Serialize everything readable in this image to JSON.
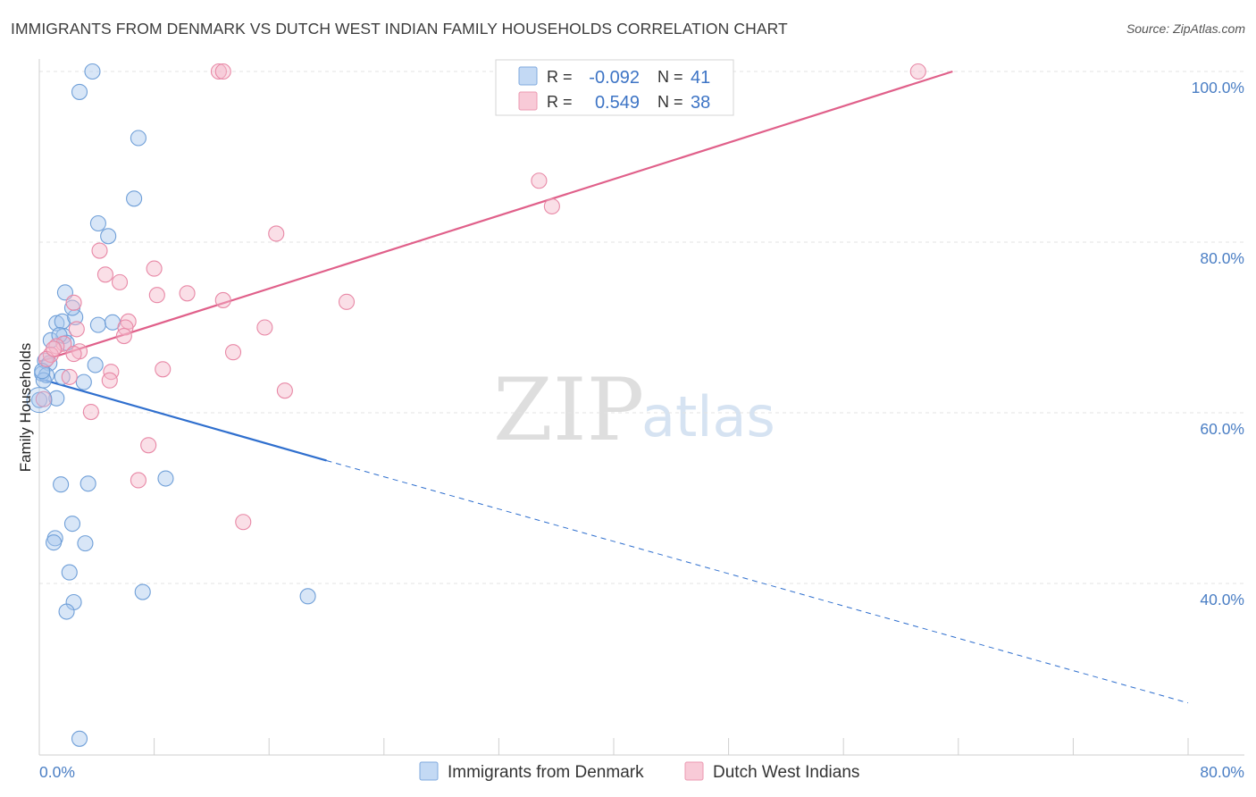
{
  "header": {
    "title": "IMMIGRANTS FROM DENMARK VS DUTCH WEST INDIAN FAMILY HOUSEHOLDS CORRELATION CHART",
    "source": "Source: ZipAtlas.com"
  },
  "watermark": {
    "part1": "ZIP",
    "part2": "atlas"
  },
  "legend_top": {
    "r_label": "R =",
    "n_label": "N =",
    "rows": [
      {
        "r": "-0.092",
        "n": "41",
        "color": "#a9c8ee"
      },
      {
        "r": "0.549",
        "n": "38",
        "color": "#f5b9ca"
      }
    ]
  },
  "chart_data": {
    "type": "scatter",
    "title": "IMMIGRANTS FROM DENMARK VS DUTCH WEST INDIAN FAMILY HOUSEHOLDS CORRELATION CHART",
    "xlabel": "",
    "ylabel": "Family Households",
    "xlim": [
      0,
      80
    ],
    "ylim": [
      20,
      102
    ],
    "x_tick_labels": [
      "0.0%",
      "80.0%"
    ],
    "y_tick_labels": [
      "100.0%",
      "80.0%",
      "60.0%",
      "40.0%"
    ],
    "y_ticks": [
      100,
      80,
      60,
      40
    ],
    "grid": true,
    "legend_position": "bottom",
    "series": [
      {
        "name": "Immigrants from Denmark",
        "color": "#a9c8ee",
        "stroke": "#6f9fd8",
        "line_color": "#2f6fce",
        "r": -0.092,
        "n": 41,
        "trend": {
          "x0": 0,
          "y0": 64.0,
          "x1": 20,
          "y1": 54.4,
          "x_dash_end": 80,
          "y_dash_end": 26.0
        },
        "points": [
          [
            3.7,
            100.0
          ],
          [
            2.8,
            97.6
          ],
          [
            6.9,
            92.2
          ],
          [
            6.6,
            85.1
          ],
          [
            4.1,
            82.2
          ],
          [
            4.8,
            80.7
          ],
          [
            1.8,
            74.1
          ],
          [
            1.2,
            70.5
          ],
          [
            1.6,
            70.7
          ],
          [
            2.5,
            71.2
          ],
          [
            2.3,
            72.3
          ],
          [
            4.1,
            70.3
          ],
          [
            5.1,
            70.6
          ],
          [
            1.7,
            69.0
          ],
          [
            1.9,
            68.2
          ],
          [
            0.8,
            68.5
          ],
          [
            0.4,
            66.1
          ],
          [
            0.7,
            65.8
          ],
          [
            3.9,
            65.6
          ],
          [
            0.2,
            64.6
          ],
          [
            0.5,
            64.4
          ],
          [
            1.6,
            64.2
          ],
          [
            0.3,
            63.8
          ],
          [
            3.1,
            63.6
          ],
          [
            0.0,
            61.5
          ],
          [
            1.2,
            61.7
          ],
          [
            1.5,
            51.6
          ],
          [
            3.4,
            51.7
          ],
          [
            8.8,
            52.3
          ],
          [
            2.3,
            47.0
          ],
          [
            1.1,
            45.3
          ],
          [
            1.0,
            44.8
          ],
          [
            3.2,
            44.7
          ],
          [
            2.1,
            41.3
          ],
          [
            7.2,
            39.0
          ],
          [
            18.7,
            38.5
          ],
          [
            2.4,
            37.8
          ],
          [
            1.9,
            36.7
          ],
          [
            2.8,
            21.8
          ],
          [
            0.2,
            64.9
          ],
          [
            1.4,
            69.1
          ]
        ]
      },
      {
        "name": "Dutch West Indians",
        "color": "#f5b9ca",
        "stroke": "#e888a6",
        "line_color": "#e0608a",
        "r": 0.549,
        "n": 38,
        "trend": {
          "x0": 0,
          "y0": 66.0,
          "x1": 63.6,
          "y1": 100.0
        },
        "points": [
          [
            12.5,
            100.0
          ],
          [
            12.8,
            100.0
          ],
          [
            61.2,
            100.0
          ],
          [
            34.8,
            87.2
          ],
          [
            35.7,
            84.2
          ],
          [
            16.5,
            81.0
          ],
          [
            4.2,
            79.0
          ],
          [
            8.0,
            76.9
          ],
          [
            4.6,
            76.2
          ],
          [
            5.6,
            75.3
          ],
          [
            10.3,
            74.0
          ],
          [
            8.2,
            73.8
          ],
          [
            12.8,
            73.2
          ],
          [
            21.4,
            73.0
          ],
          [
            2.4,
            72.9
          ],
          [
            6.2,
            70.7
          ],
          [
            6.0,
            70.0
          ],
          [
            15.7,
            70.0
          ],
          [
            2.6,
            69.8
          ],
          [
            5.9,
            69.0
          ],
          [
            1.7,
            68.1
          ],
          [
            1.2,
            67.8
          ],
          [
            2.8,
            67.2
          ],
          [
            13.5,
            67.1
          ],
          [
            2.4,
            66.9
          ],
          [
            0.8,
            66.8
          ],
          [
            0.5,
            66.3
          ],
          [
            8.6,
            65.1
          ],
          [
            5.0,
            64.8
          ],
          [
            2.1,
            64.2
          ],
          [
            4.9,
            63.8
          ],
          [
            17.1,
            62.6
          ],
          [
            0.3,
            61.6
          ],
          [
            3.6,
            60.1
          ],
          [
            7.6,
            56.2
          ],
          [
            6.9,
            52.1
          ],
          [
            14.2,
            47.2
          ],
          [
            1.0,
            67.5
          ]
        ]
      }
    ]
  },
  "legend_bottom": {
    "items": [
      {
        "label": "Immigrants from Denmark"
      },
      {
        "label": "Dutch West Indians"
      }
    ]
  }
}
